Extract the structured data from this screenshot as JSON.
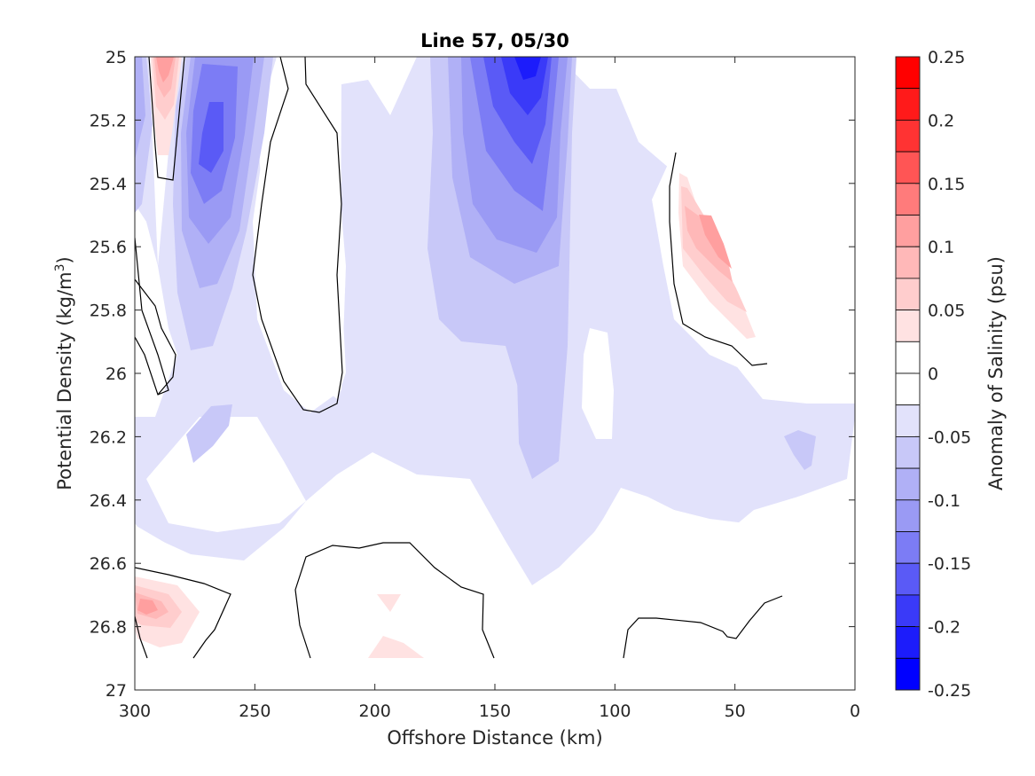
{
  "chart_data": {
    "type": "heatmap",
    "subtype": "filled-contour",
    "title": "Line 57, 05/30",
    "xlabel": "Offshore Distance (km)",
    "ylabel_prefix": "Potential Density (kg/m",
    "ylabel_sup": "3",
    "ylabel_suffix": ")",
    "colorbar_label": "Anomaly of Salinity (psu)",
    "xlim": [
      300,
      0
    ],
    "x_reversed": true,
    "ylim": [
      25,
      27
    ],
    "y_reversed": true,
    "xticks": [
      300,
      250,
      200,
      150,
      100,
      50,
      0
    ],
    "xtick_labels": [
      "300",
      "250",
      "200",
      "150",
      "100",
      "50",
      "0"
    ],
    "yticks": [
      25,
      25.2,
      25.4,
      25.6,
      25.8,
      26,
      26.2,
      26.4,
      26.6,
      26.8,
      27
    ],
    "ytick_labels": [
      "25",
      "25.2",
      "25.4",
      "25.6",
      "25.8",
      "26",
      "26.2",
      "26.4",
      "26.6",
      "26.8",
      "27"
    ],
    "colorbar_ticks": [
      0.25,
      0.2,
      0.15,
      0.1,
      0.05,
      0,
      -0.05,
      -0.1,
      -0.15,
      -0.2,
      -0.25
    ],
    "colorbar_tick_labels": [
      "0.25",
      "0.2",
      "0.15",
      "0.1",
      "0.05",
      "0",
      "-0.05",
      "-0.1",
      "-0.15",
      "-0.2",
      "-0.25"
    ],
    "colorbar_levels": [
      {
        "from": 0.225,
        "to": 0.25,
        "color": "#ff0000"
      },
      {
        "from": 0.2,
        "to": 0.225,
        "color": "#ff1a1a"
      },
      {
        "from": 0.175,
        "to": 0.2,
        "color": "#ff3333"
      },
      {
        "from": 0.15,
        "to": 0.175,
        "color": "#ff5555"
      },
      {
        "from": 0.125,
        "to": 0.15,
        "color": "#ff7b7b"
      },
      {
        "from": 0.1,
        "to": 0.125,
        "color": "#ff9f9f"
      },
      {
        "from": 0.075,
        "to": 0.1,
        "color": "#ffb8b8"
      },
      {
        "from": 0.05,
        "to": 0.075,
        "color": "#ffcdcd"
      },
      {
        "from": 0.025,
        "to": 0.05,
        "color": "#ffe2e2"
      },
      {
        "from": 0,
        "to": 0.025,
        "color": "#ffffff"
      },
      {
        "from": -0.025,
        "to": 0,
        "color": "#ffffff"
      },
      {
        "from": -0.05,
        "to": -0.025,
        "color": "#e2e2fb"
      },
      {
        "from": -0.075,
        "to": -0.05,
        "color": "#c8c8f8"
      },
      {
        "from": -0.1,
        "to": -0.075,
        "color": "#b0b0f6"
      },
      {
        "from": -0.125,
        "to": -0.1,
        "color": "#9a9af4"
      },
      {
        "from": -0.15,
        "to": -0.125,
        "color": "#7c7cf5"
      },
      {
        "from": -0.175,
        "to": -0.15,
        "color": "#5a5af6"
      },
      {
        "from": -0.2,
        "to": -0.175,
        "color": "#3a3af8"
      },
      {
        "from": -0.225,
        "to": -0.2,
        "color": "#1c1cfb"
      },
      {
        "from": -0.25,
        "to": -0.225,
        "color": "#0000ff"
      }
    ],
    "grid": false,
    "legend": "colorbar-right",
    "zero_contour_color": "#000000",
    "features": [
      {
        "label": "nearshore-300km-shallow-positive",
        "x_km": 287,
        "y_density": 25.1,
        "peak_anomaly": 0.13
      },
      {
        "label": "offshore-270km-negative-core",
        "x_km": 268,
        "y_density": 25.25,
        "peak_anomaly": -0.17
      },
      {
        "label": "mid-140km-negative-core",
        "x_km": 137,
        "y_density": 25.05,
        "peak_anomaly": -0.21
      },
      {
        "label": "nearshore-60km-positive",
        "x_km": 60,
        "y_density": 25.6,
        "peak_anomaly": 0.12
      },
      {
        "label": "deep-295km-positive",
        "x_km": 293,
        "y_density": 26.7,
        "peak_anomaly": 0.1
      },
      {
        "label": "deep-195km-positive",
        "x_km": 195,
        "y_density": 26.85,
        "peak_anomaly": 0.04
      },
      {
        "label": "offshore-20km-negative",
        "x_km": 21,
        "y_density": 26.22,
        "peak_anomaly": -0.08
      }
    ]
  }
}
